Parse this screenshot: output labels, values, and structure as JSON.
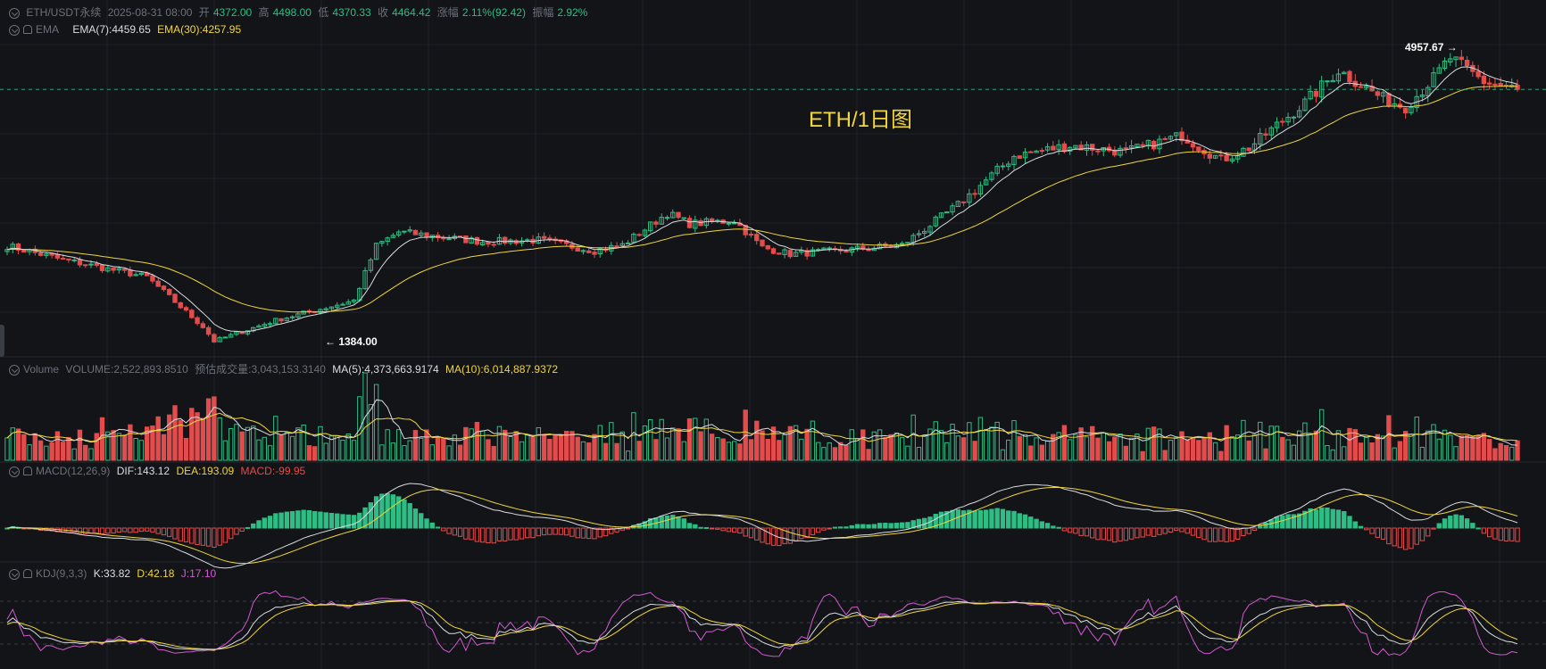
{
  "header": {
    "symbol": "ETH/USDT永续",
    "datetime": "2025-08-31 08:00",
    "open_label": "开",
    "open": "4372.00",
    "high_label": "高",
    "high": "4498.00",
    "low_label": "低",
    "low": "4370.33",
    "close_label": "收",
    "close": "4464.42",
    "change_label": "涨幅",
    "change": "2.11%(92.42)",
    "amp_label": "振幅",
    "amp": "2.92%"
  },
  "ema": {
    "name": "EMA",
    "fast": "EMA(7):4459.65",
    "slow": "EMA(30):4257.95"
  },
  "watermark": "ETH/1日图",
  "max_marker": "4957.67 →",
  "min_marker": "← 1384.00",
  "volume": {
    "name": "Volume",
    "value": "VOLUME:2,522,893.8510",
    "estimate": "预估成交量:3,043,153.3140",
    "ma5": "MA(5):4,373,663.9174",
    "ma10": "MA(10):6,014,887.9372"
  },
  "macd": {
    "name": "MACD(12,26,9)",
    "dif": "DIF:143.12",
    "dea": "DEA:193.09",
    "macd": "MACD:-99.95"
  },
  "kdj": {
    "name": "KDJ(9,3,3)",
    "k": "K:33.82",
    "d": "D:42.18",
    "j": "J:17.10"
  },
  "colors": {
    "up": "#2ebd85",
    "down": "#e24c4c",
    "ema7": "#d9dce1",
    "ema30": "#f0d53c",
    "j": "#d25ad2",
    "grid": "#1f2228"
  },
  "chart_data": {
    "type": "candlestick",
    "title": "ETH/1日图",
    "series_desc": "daily OHLC approx, from ~2024-09 to 2025-08-31",
    "keypoints": [
      {
        "t": 0,
        "price": 2550
      },
      {
        "t": 10,
        "price": 2380
      },
      {
        "t": 20,
        "price": 2240
      },
      {
        "t": 25,
        "price": 2170
      },
      {
        "t": 35,
        "price": 1560
      },
      {
        "t": 37,
        "price": 1384
      },
      {
        "t": 48,
        "price": 1640
      },
      {
        "t": 62,
        "price": 1880
      },
      {
        "t": 66,
        "price": 2550
      },
      {
        "t": 70,
        "price": 2720
      },
      {
        "t": 85,
        "price": 2600
      },
      {
        "t": 95,
        "price": 2620
      },
      {
        "t": 105,
        "price": 2490
      },
      {
        "t": 110,
        "price": 2560
      },
      {
        "t": 118,
        "price": 2950
      },
      {
        "t": 122,
        "price": 2820
      },
      {
        "t": 130,
        "price": 2860
      },
      {
        "t": 135,
        "price": 2530
      },
      {
        "t": 140,
        "price": 2450
      },
      {
        "t": 150,
        "price": 2500
      },
      {
        "t": 160,
        "price": 2560
      },
      {
        "t": 170,
        "price": 3050
      },
      {
        "t": 180,
        "price": 3650
      },
      {
        "t": 190,
        "price": 3780
      },
      {
        "t": 200,
        "price": 3700
      },
      {
        "t": 210,
        "price": 3900
      },
      {
        "t": 217,
        "price": 3600
      },
      {
        "t": 222,
        "price": 3750
      },
      {
        "t": 232,
        "price": 4300
      },
      {
        "t": 238,
        "price": 4700
      },
      {
        "t": 246,
        "price": 4350
      },
      {
        "t": 250,
        "price": 4250
      },
      {
        "t": 255,
        "price": 4600
      },
      {
        "t": 258,
        "price": 4850
      },
      {
        "t": 264,
        "price": 4560
      },
      {
        "t": 270,
        "price": 4464
      }
    ],
    "max": 4957.67,
    "min": 1384.0,
    "ylim": [
      1280,
      5100
    ]
  }
}
